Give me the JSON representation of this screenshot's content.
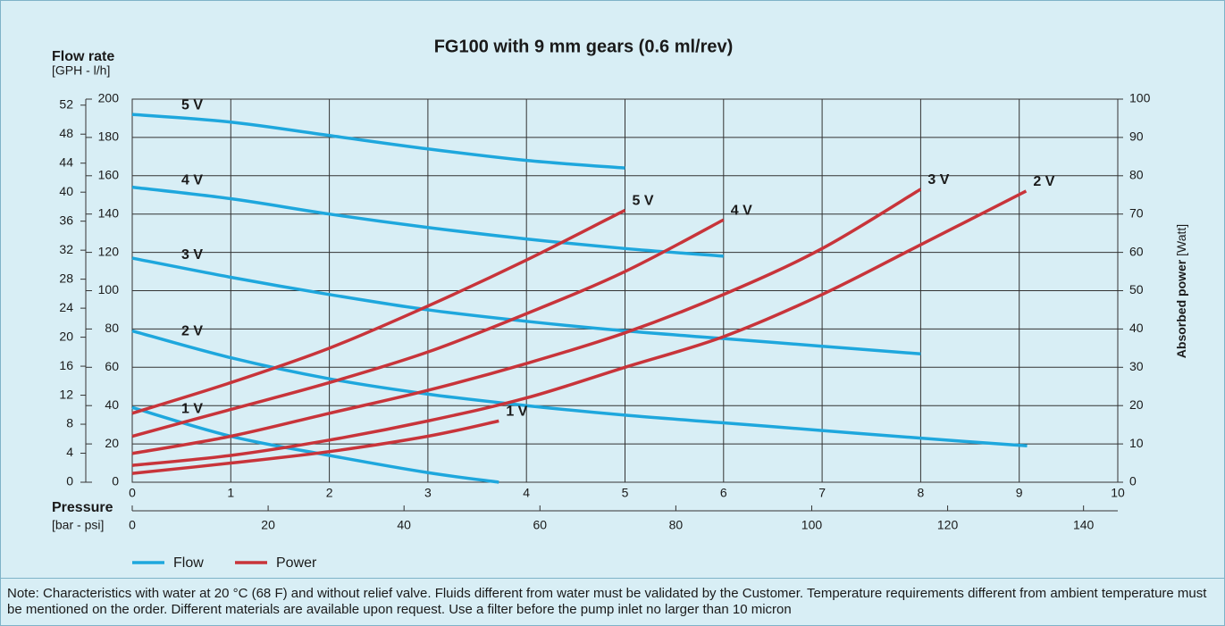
{
  "chart_data": {
    "type": "line",
    "title": "FG100 with 9 mm gears (0.6 ml/rev)",
    "y_label": "Flow rate",
    "y_unit": "[GPH - l/h]",
    "x_label": "Pressure",
    "x_unit": "[bar - psi]",
    "y2_label": "Absorbed power",
    "y2_unit": "[Watt]",
    "grid": true,
    "xlim": [
      0,
      10
    ],
    "xticks": [
      0,
      1,
      2,
      3,
      4,
      5,
      6,
      7,
      8,
      9,
      10
    ],
    "x2lim": [
      0,
      145.04
    ],
    "x2ticks": [
      0,
      20,
      40,
      60,
      80,
      100,
      120,
      140
    ],
    "ylim": [
      0,
      200
    ],
    "yticks": [
      0,
      20,
      40,
      60,
      80,
      100,
      120,
      140,
      160,
      180,
      200
    ],
    "y3lim": [
      0,
      52.83
    ],
    "y3ticks": [
      0,
      4,
      8,
      12,
      16,
      20,
      24,
      28,
      32,
      36,
      40,
      44,
      48,
      52
    ],
    "y2lim": [
      0,
      100
    ],
    "y2ticks": [
      0,
      10,
      20,
      30,
      40,
      50,
      60,
      70,
      80,
      90,
      100
    ],
    "series": [
      {
        "name": "Flow",
        "color": "#1ea7dd",
        "curves": [
          {
            "label": "5 V",
            "x": [
              0,
              1,
              2,
              3,
              4,
              5
            ],
            "values": [
              192,
              188,
              181,
              174,
              168,
              164
            ]
          },
          {
            "label": "4 V",
            "x": [
              0,
              1,
              2,
              3,
              4,
              5,
              6
            ],
            "values": [
              154,
              148,
              140,
              133,
              127,
              122,
              118
            ]
          },
          {
            "label": "3 V",
            "x": [
              0,
              1,
              2,
              3,
              4,
              5,
              6,
              7,
              8
            ],
            "values": [
              117,
              107,
              98,
              90,
              84,
              79,
              75,
              71,
              67
            ]
          },
          {
            "label": "2 V",
            "x": [
              0,
              1,
              2,
              3,
              4,
              5,
              6,
              7,
              8,
              9.08
            ],
            "values": [
              79,
              65,
              54,
              46,
              40,
              35,
              31,
              27,
              23,
              19
            ]
          },
          {
            "label": "1 V",
            "x": [
              0,
              1,
              2,
              3,
              3.72
            ],
            "values": [
              39,
              24,
              14,
              5,
              0
            ]
          }
        ]
      },
      {
        "name": "Power",
        "color": "#c8343a",
        "axis": "y2",
        "curves": [
          {
            "label": "5 V",
            "x": [
              0,
              1,
              2,
              3,
              4,
              5
            ],
            "values": [
              18,
              26,
              35,
              46,
              58,
              71
            ]
          },
          {
            "label": "4 V",
            "x": [
              0,
              1,
              2,
              3,
              4,
              5,
              6
            ],
            "values": [
              12,
              19,
              26,
              34,
              44,
              55,
              68.5
            ]
          },
          {
            "label": "3 V",
            "x": [
              0,
              1,
              2,
              3,
              4,
              5,
              6,
              7,
              8
            ],
            "values": [
              7.5,
              12,
              18,
              24,
              31,
              39,
              49,
              61,
              76.5
            ]
          },
          {
            "label": "2 V",
            "x": [
              0,
              1,
              2,
              3,
              4,
              5,
              6,
              7,
              8,
              9.07
            ],
            "values": [
              4.4,
              7,
              11,
              16,
              22,
              30,
              38,
              49,
              62,
              76
            ]
          },
          {
            "label": "1 V",
            "x": [
              0,
              1,
              2,
              3,
              3.72
            ],
            "values": [
              2.3,
              5,
              8,
              12,
              16
            ]
          }
        ]
      }
    ],
    "note": "Note: Characteristics with water at 20 °C (68 F) and without relief valve. Fluids different from water must be validated by the Customer. Temperature requirements different from ambient temperature must be mentioned on the order. Different materials are available upon request. Use a filter before the pump inlet no larger than 10 micron"
  }
}
